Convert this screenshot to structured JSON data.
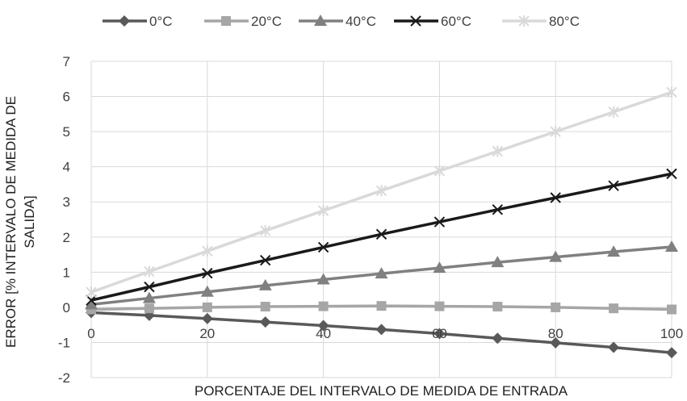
{
  "chart_data": {
    "type": "line",
    "title": "",
    "xlabel": "PORCENTAJE DEL INTERVALO DE MEDIDA DE ENTRADA",
    "ylabel": "ERROR [% INTERVALO DE MEDIDA DE SALIDA]",
    "ylabel_lines": [
      "ERROR [% INTERVALO DE MEDIDA DE",
      "SALIDA]"
    ],
    "xlim": [
      0,
      100
    ],
    "ylim": [
      -2,
      7
    ],
    "x_ticks": [
      0,
      20,
      40,
      60,
      80,
      100
    ],
    "y_ticks": [
      -2,
      -1,
      0,
      1,
      2,
      3,
      4,
      5,
      6,
      7
    ],
    "grid": true,
    "legend_position": "top",
    "x": [
      0,
      10,
      20,
      30,
      40,
      50,
      60,
      70,
      80,
      90,
      100
    ],
    "series": [
      {
        "name": "0°C",
        "color": "#595959",
        "marker": "diamond",
        "values": [
          -0.15,
          -0.23,
          -0.32,
          -0.42,
          -0.52,
          -0.63,
          -0.75,
          -0.88,
          -1.01,
          -1.14,
          -1.29
        ]
      },
      {
        "name": "20°C",
        "color": "#a6a6a6",
        "marker": "square",
        "values": [
          -0.06,
          -0.03,
          0.0,
          0.02,
          0.03,
          0.04,
          0.03,
          0.02,
          0.0,
          -0.03,
          -0.06
        ]
      },
      {
        "name": "40°C",
        "color": "#808080",
        "marker": "triangle",
        "values": [
          0.08,
          0.26,
          0.44,
          0.62,
          0.79,
          0.96,
          1.12,
          1.28,
          1.43,
          1.58,
          1.72
        ]
      },
      {
        "name": "60°C",
        "color": "#1a1a1a",
        "marker": "x",
        "values": [
          0.2,
          0.58,
          0.97,
          1.34,
          1.71,
          2.08,
          2.43,
          2.78,
          3.12,
          3.46,
          3.8
        ]
      },
      {
        "name": "80°C",
        "color": "#d9d9d9",
        "marker": "star",
        "values": [
          0.43,
          1.02,
          1.6,
          2.18,
          2.75,
          3.32,
          3.88,
          4.44,
          5.0,
          5.56,
          6.12
        ]
      }
    ]
  }
}
